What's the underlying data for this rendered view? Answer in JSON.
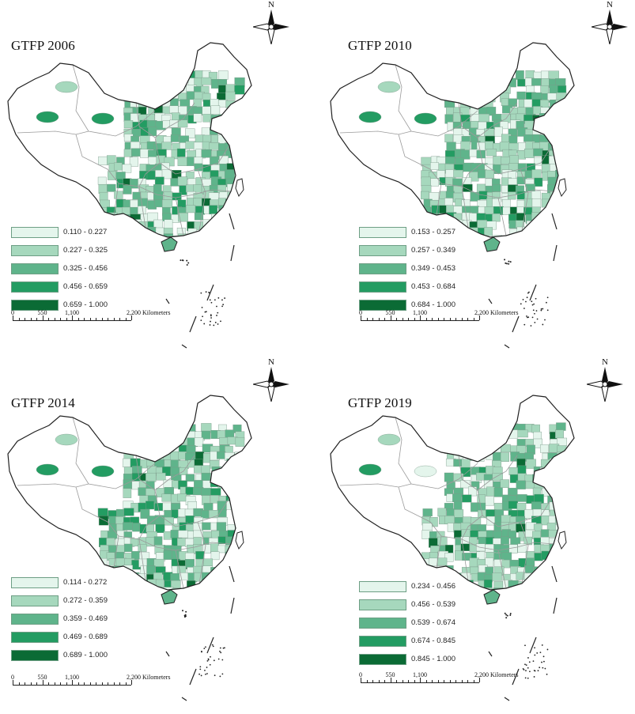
{
  "panels": [
    {
      "title": "GTFP 2006",
      "legend": [
        {
          "label": "0.110 - 0.227",
          "color": "#e4f5ec"
        },
        {
          "label": "0.227 - 0.325",
          "color": "#a6d8bd"
        },
        {
          "label": "0.325 - 0.456",
          "color": "#5fb48b"
        },
        {
          "label": "0.456 - 0.659",
          "color": "#239c62"
        },
        {
          "label": "0.659 - 1.000",
          "color": "#0b6b35"
        }
      ]
    },
    {
      "title": "GTFP 2010",
      "legend": [
        {
          "label": "0.153 - 0.257",
          "color": "#e4f5ec"
        },
        {
          "label": "0.257 - 0.349",
          "color": "#a6d8bd"
        },
        {
          "label": "0.349 - 0.453",
          "color": "#5fb48b"
        },
        {
          "label": "0.453 - 0.684",
          "color": "#239c62"
        },
        {
          "label": "0.684 - 1.000",
          "color": "#0b6b35"
        }
      ]
    },
    {
      "title": "GTFP 2014",
      "legend": [
        {
          "label": "0.114 - 0.272",
          "color": "#e4f5ec"
        },
        {
          "label": "0.272 - 0.359",
          "color": "#a6d8bd"
        },
        {
          "label": "0.359 - 0.469",
          "color": "#5fb48b"
        },
        {
          "label": "0.469 - 0.689",
          "color": "#239c62"
        },
        {
          "label": "0.689 - 1.000",
          "color": "#0b6b35"
        }
      ]
    },
    {
      "title": "GTFP 2019",
      "legend": [
        {
          "label": "0.234 - 0.456",
          "color": "#e4f5ec"
        },
        {
          "label": "0.456 - 0.539",
          "color": "#a6d8bd"
        },
        {
          "label": "0.539 - 0.674",
          "color": "#5fb48b"
        },
        {
          "label": "0.674 - 0.845",
          "color": "#239c62"
        },
        {
          "label": "0.845 - 1.000",
          "color": "#0b6b35"
        }
      ]
    }
  ],
  "north_label": "N",
  "scale": {
    "labels": [
      "0",
      "550",
      "1,100",
      "2,200 Kilometers"
    ]
  },
  "colors": {
    "outline": "#222222",
    "province_border": "#9a9a9a",
    "no_data": "#ffffff"
  }
}
